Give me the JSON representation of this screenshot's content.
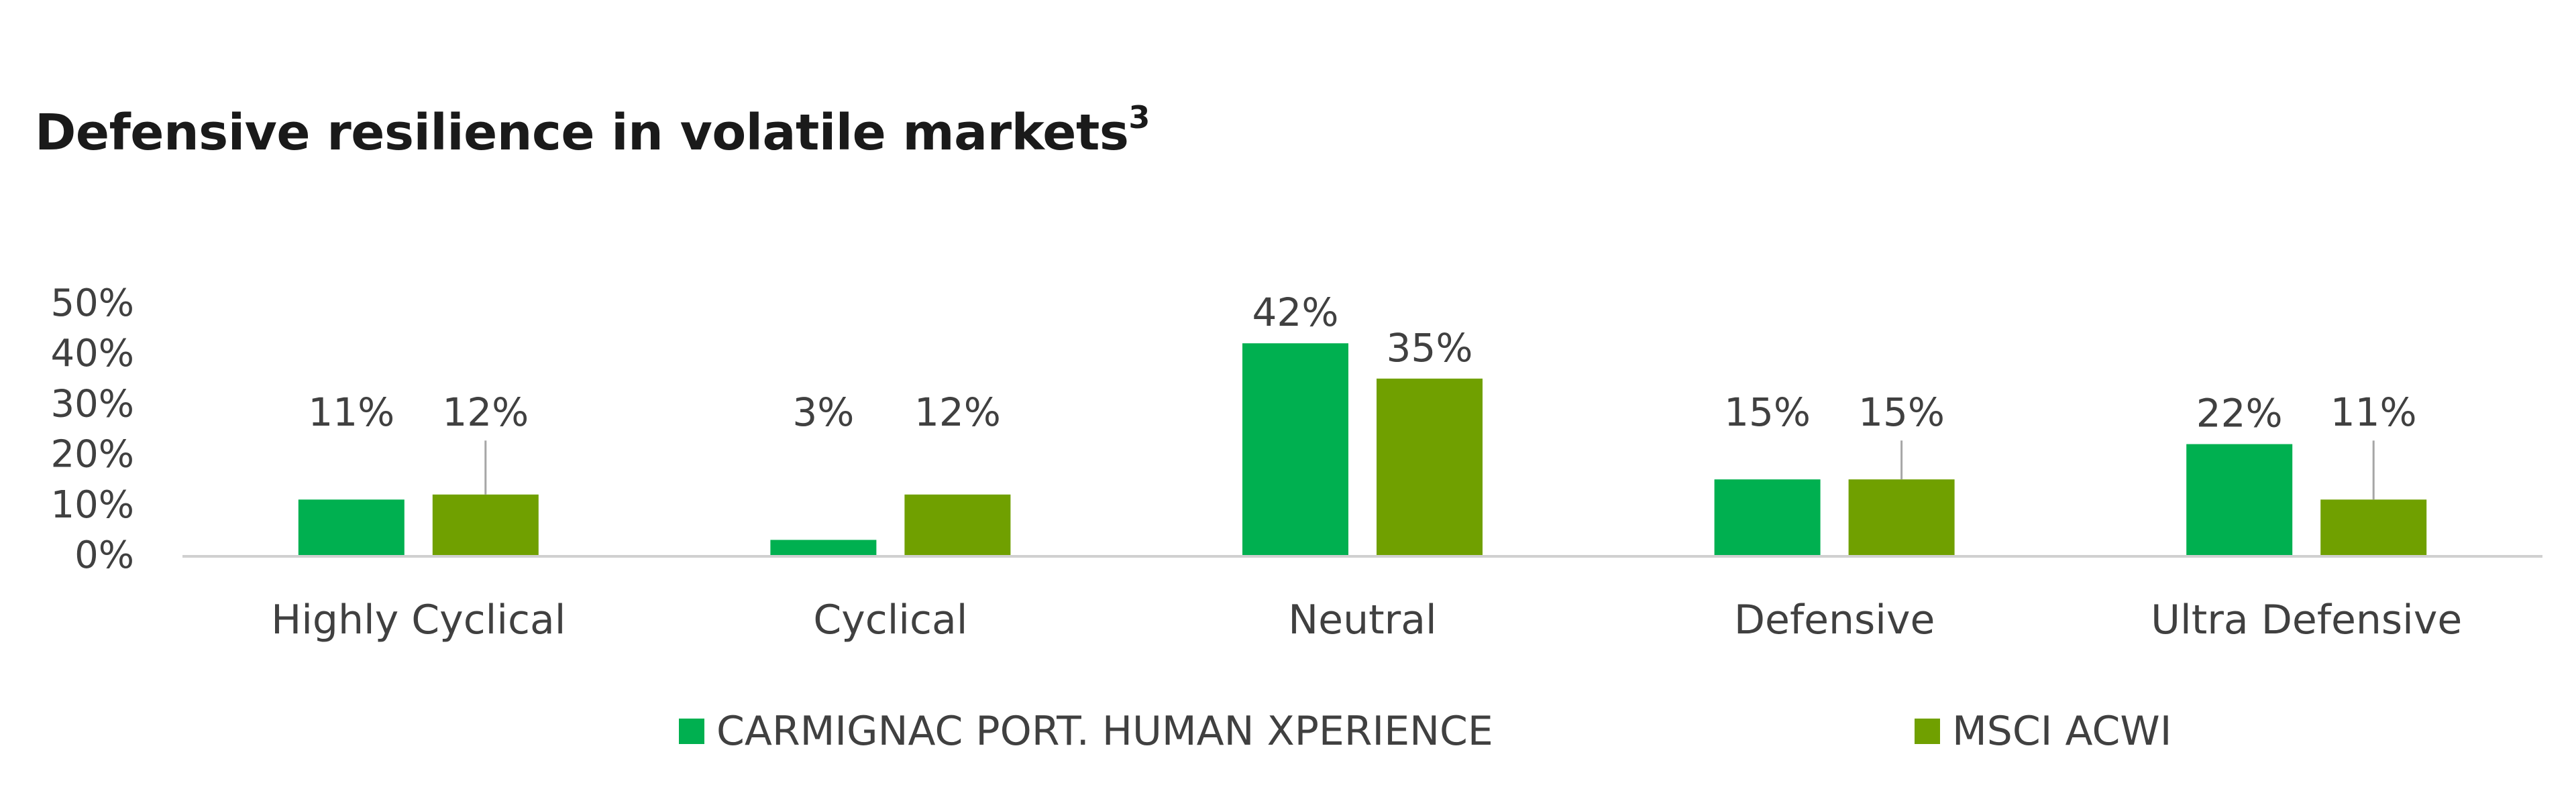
{
  "title": "Defensive resilience in volatile markets",
  "title_superscript": "3",
  "chart_data": {
    "type": "bar",
    "title": "Defensive resilience in volatile markets",
    "categories": [
      "Highly Cyclical",
      "Cyclical",
      "Neutral",
      "Defensive",
      "Ultra Defensive"
    ],
    "series": [
      {
        "name": "CARMIGNAC PORT. HUMAN XPERIENCE",
        "color": "#00b050",
        "values": [
          11,
          3,
          42,
          15,
          22
        ],
        "labels": [
          "11%",
          "3%",
          "42%",
          "15%",
          "22%"
        ]
      },
      {
        "name": "MSCI ACWI",
        "color": "#70a000",
        "values": [
          12,
          12,
          35,
          15,
          11
        ],
        "labels": [
          "12%",
          "12%",
          "35%",
          "15%",
          "11%"
        ]
      }
    ],
    "ylim": [
      0,
      50
    ],
    "yticks": [
      0,
      10,
      20,
      30,
      40,
      50
    ],
    "ytick_labels": [
      "0%",
      "10%",
      "20%",
      "30%",
      "40%",
      "50%"
    ],
    "xlabel": "",
    "ylabel": "",
    "grid": false,
    "legend_position": "bottom"
  }
}
